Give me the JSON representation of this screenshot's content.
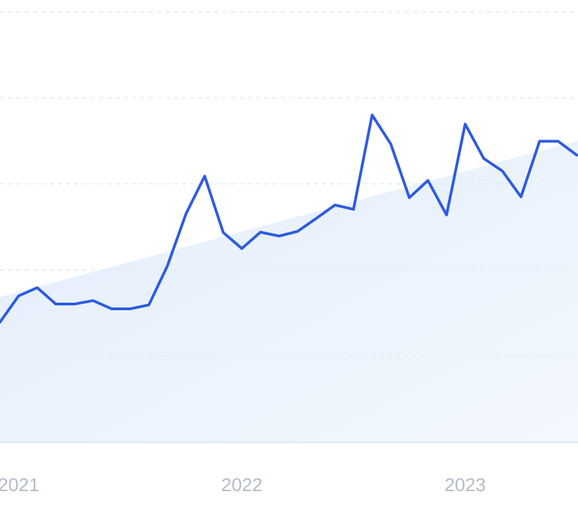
{
  "chart_data": {
    "type": "line",
    "categories": [
      null,
      "2021",
      null,
      null,
      null,
      null,
      null,
      null,
      null,
      null,
      null,
      null,
      null,
      "2022",
      null,
      null,
      null,
      null,
      null,
      null,
      null,
      null,
      null,
      null,
      null,
      "2023",
      null,
      null,
      null,
      null,
      null,
      null
    ],
    "values": [
      27.9,
      34.0,
      35.9,
      32.1,
      32.1,
      32.9,
      31.0,
      31.0,
      31.9,
      41.0,
      53.1,
      61.8,
      48.7,
      45.0,
      48.8,
      47.9,
      49.0,
      52.0,
      55.1,
      54.1,
      76.0,
      69.3,
      56.8,
      60.8,
      52.8,
      73.9,
      65.9,
      63.0,
      57.0,
      69.9,
      69.9,
      66.7
    ],
    "color": "#2f5be0",
    "trend": {
      "values": [
        33.7,
        70.1
      ],
      "color": "#e3eefb"
    },
    "ylim": [
      0,
      100
    ],
    "yticks": [
      0,
      20,
      40,
      60,
      80,
      100
    ],
    "grid": true
  }
}
